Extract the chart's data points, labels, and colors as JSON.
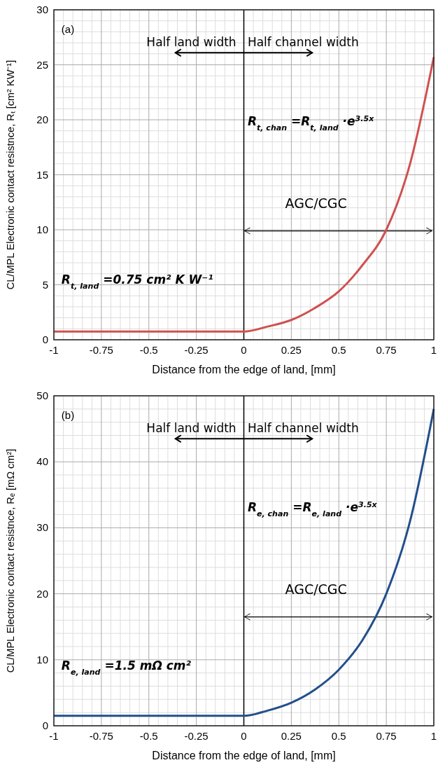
{
  "chart_data": [
    {
      "type": "line",
      "x": [
        -1,
        0,
        0.125,
        0.25,
        0.375,
        0.5,
        0.625,
        0.75,
        0.875,
        1
      ],
      "series": [
        {
          "color": "#d05050",
          "values": [
            0.75,
            0.75,
            1.2,
            1.8,
            2.9,
            4.4,
            6.8,
            10,
            16,
            25.7
          ]
        }
      ],
      "xlim": [
        -1,
        1
      ],
      "ylim": [
        0,
        30
      ],
      "xticks": [
        -1,
        -0.75,
        -0.5,
        -0.25,
        0,
        0.25,
        0.5,
        0.75,
        1
      ],
      "yticks": [
        0,
        5,
        10,
        15,
        20,
        25,
        30
      ],
      "xlabel": "Distance from the edge of land, [mm]",
      "ylabel": "CL/MPL Electronic contact resistnce, Rₜ [cm² KW⁻¹]",
      "grid": true,
      "ref_lines": [
        {
          "axis": "x",
          "value": 0
        }
      ],
      "annotations": [
        "(a)",
        "Half land width",
        "Half channel width",
        "R$_{t, chan}$ =R$_{t, land}$ ·e$^{3.5x}$",
        "AGC/CGC",
        "R$_{t, land}$ =0.75 cm² K W⁻¹"
      ]
    },
    {
      "type": "line",
      "x": [
        -1,
        0,
        0.125,
        0.25,
        0.375,
        0.5,
        0.625,
        0.75,
        0.875,
        1
      ],
      "series": [
        {
          "color": "#234f8c",
          "values": [
            1.5,
            1.5,
            2.3,
            3.5,
            5.5,
            8.5,
            13,
            20,
            31,
            48
          ]
        }
      ],
      "xlim": [
        -1,
        1
      ],
      "ylim": [
        0,
        50
      ],
      "xticks": [
        -1,
        -0.75,
        -0.5,
        -0.25,
        0,
        0.25,
        0.5,
        0.75,
        1
      ],
      "yticks": [
        0,
        10,
        20,
        30,
        40,
        50
      ],
      "xlabel": "Distance from the edge of land, [mm]",
      "ylabel": "CL/MPL Electronic contact resistnce, Rₑ [mΩ cm²]",
      "grid": true,
      "ref_lines": [
        {
          "axis": "x",
          "value": 0
        }
      ],
      "annotations": [
        "(b)",
        "Half land width",
        "Half channel width",
        "R$_{e, chan}$ =R$_{e, land}$ ·e$^{3.5x}$",
        "AGC/CGC",
        "R$_{e, land}$ =1.5 mΩ cm²"
      ]
    }
  ]
}
